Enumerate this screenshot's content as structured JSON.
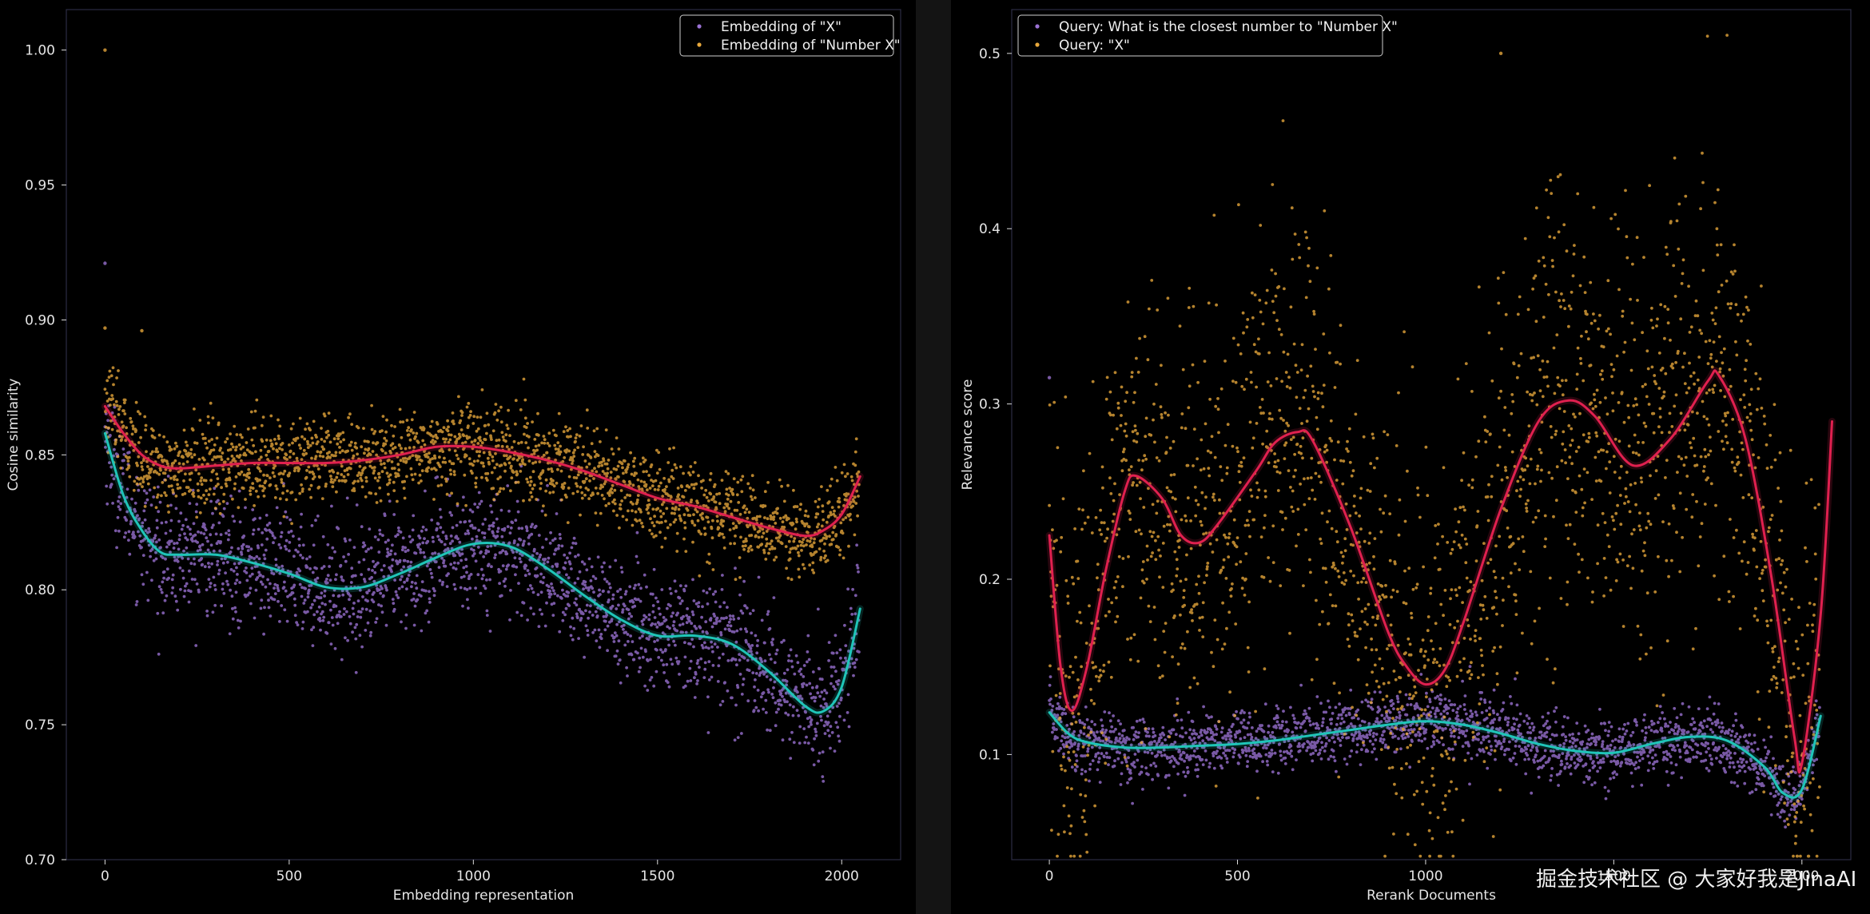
{
  "watermark": "掘金技术社区 @ 大家好我是JinaAI",
  "chart_data": [
    {
      "type": "scatter",
      "title": "",
      "xlabel": "Embedding representation",
      "ylabel": "Cosine similarity",
      "xlim": [
        -105,
        2160
      ],
      "ylim": [
        0.7,
        1.015
      ],
      "xticks": [
        0,
        500,
        1000,
        1500,
        2000
      ],
      "yticks": [
        0.7,
        0.75,
        0.8,
        0.85,
        0.9,
        0.95,
        1.0
      ],
      "ytick_labels": [
        "0.70",
        "0.75",
        "0.80",
        "0.85",
        "0.90",
        "0.95",
        "1.00"
      ],
      "legend_position": "top-right",
      "grid": false,
      "series": [
        {
          "name": "Embedding of \"X\"",
          "color": "#9b72d4",
          "trend_color": "#1fc5b8",
          "trend": [
            [
              0,
              0.858
            ],
            [
              50,
              0.835
            ],
            [
              100,
              0.822
            ],
            [
              150,
              0.814
            ],
            [
              200,
              0.813
            ],
            [
              300,
              0.813
            ],
            [
              400,
              0.81
            ],
            [
              500,
              0.806
            ],
            [
              600,
              0.801
            ],
            [
              700,
              0.801
            ],
            [
              800,
              0.806
            ],
            [
              900,
              0.812
            ],
            [
              1000,
              0.817
            ],
            [
              1100,
              0.816
            ],
            [
              1200,
              0.808
            ],
            [
              1300,
              0.798
            ],
            [
              1400,
              0.789
            ],
            [
              1500,
              0.783
            ],
            [
              1600,
              0.783
            ],
            [
              1700,
              0.78
            ],
            [
              1800,
              0.77
            ],
            [
              1900,
              0.757
            ],
            [
              1950,
              0.755
            ],
            [
              2000,
              0.764
            ],
            [
              2050,
              0.793
            ]
          ],
          "special_points": [
            [
              0,
              0.921
            ]
          ]
        },
        {
          "name": "Embedding of \"Number X\"",
          "color": "#e8a83c",
          "trend_color": "#e0204f",
          "trend": [
            [
              0,
              0.868
            ],
            [
              50,
              0.858
            ],
            [
              100,
              0.85
            ],
            [
              150,
              0.846
            ],
            [
              200,
              0.845
            ],
            [
              300,
              0.846
            ],
            [
              400,
              0.847
            ],
            [
              500,
              0.847
            ],
            [
              600,
              0.847
            ],
            [
              700,
              0.848
            ],
            [
              800,
              0.85
            ],
            [
              900,
              0.853
            ],
            [
              1000,
              0.853
            ],
            [
              1100,
              0.851
            ],
            [
              1200,
              0.848
            ],
            [
              1300,
              0.844
            ],
            [
              1400,
              0.839
            ],
            [
              1500,
              0.834
            ],
            [
              1600,
              0.831
            ],
            [
              1700,
              0.827
            ],
            [
              1800,
              0.823
            ],
            [
              1900,
              0.82
            ],
            [
              1950,
              0.822
            ],
            [
              2000,
              0.828
            ],
            [
              2050,
              0.842
            ]
          ],
          "special_points": [
            [
              0,
              1.0
            ],
            [
              0,
              0.897
            ],
            [
              100,
              0.896
            ]
          ]
        }
      ]
    },
    {
      "type": "scatter",
      "title": "",
      "xlabel": "Rerank Documents",
      "ylabel": "Relevance score",
      "xlim": [
        -100,
        2130
      ],
      "ylim": [
        0.04,
        0.525
      ],
      "xticks": [
        0,
        500,
        1000,
        1500,
        2000
      ],
      "yticks": [
        0.1,
        0.2,
        0.3,
        0.4,
        0.5
      ],
      "ytick_labels": [
        "0.1",
        "0.2",
        "0.3",
        "0.4",
        "0.5"
      ],
      "legend_position": "top-left",
      "grid": false,
      "series": [
        {
          "name": "Query: What is the closest number to \"Number X\"",
          "color": "#9b72d4",
          "trend_color": "#1fc5b8",
          "trend": [
            [
              0,
              0.124
            ],
            [
              50,
              0.112
            ],
            [
              100,
              0.107
            ],
            [
              200,
              0.104
            ],
            [
              300,
              0.104
            ],
            [
              400,
              0.105
            ],
            [
              500,
              0.106
            ],
            [
              600,
              0.108
            ],
            [
              700,
              0.111
            ],
            [
              800,
              0.114
            ],
            [
              900,
              0.117
            ],
            [
              1000,
              0.119
            ],
            [
              1100,
              0.117
            ],
            [
              1200,
              0.112
            ],
            [
              1300,
              0.106
            ],
            [
              1400,
              0.102
            ],
            [
              1500,
              0.101
            ],
            [
              1600,
              0.106
            ],
            [
              1700,
              0.11
            ],
            [
              1800,
              0.108
            ],
            [
              1900,
              0.093
            ],
            [
              1950,
              0.078
            ],
            [
              2000,
              0.08
            ],
            [
              2050,
              0.122
            ]
          ],
          "special_points": [
            [
              0,
              0.315
            ]
          ]
        },
        {
          "name": "Query: \"X\"",
          "color": "#e8a83c",
          "trend_color": "#e0204f",
          "trend": [
            [
              0,
              0.225
            ],
            [
              30,
              0.15
            ],
            [
              60,
              0.125
            ],
            [
              100,
              0.15
            ],
            [
              150,
              0.205
            ],
            [
              200,
              0.25
            ],
            [
              230,
              0.259
            ],
            [
              300,
              0.246
            ],
            [
              350,
              0.225
            ],
            [
              400,
              0.221
            ],
            [
              450,
              0.232
            ],
            [
              550,
              0.262
            ],
            [
              600,
              0.278
            ],
            [
              660,
              0.284
            ],
            [
              700,
              0.279
            ],
            [
              800,
              0.23
            ],
            [
              900,
              0.17
            ],
            [
              950,
              0.15
            ],
            [
              1000,
              0.14
            ],
            [
              1050,
              0.148
            ],
            [
              1100,
              0.175
            ],
            [
              1200,
              0.24
            ],
            [
              1300,
              0.29
            ],
            [
              1380,
              0.302
            ],
            [
              1450,
              0.293
            ],
            [
              1550,
              0.265
            ],
            [
              1650,
              0.28
            ],
            [
              1750,
              0.313
            ],
            [
              1780,
              0.316
            ],
            [
              1850,
              0.28
            ],
            [
              1920,
              0.2
            ],
            [
              1980,
              0.11
            ],
            [
              2000,
              0.095
            ],
            [
              2050,
              0.18
            ],
            [
              2080,
              0.29
            ]
          ],
          "special_points": [
            [
              1200,
              0.5
            ]
          ]
        }
      ]
    }
  ]
}
